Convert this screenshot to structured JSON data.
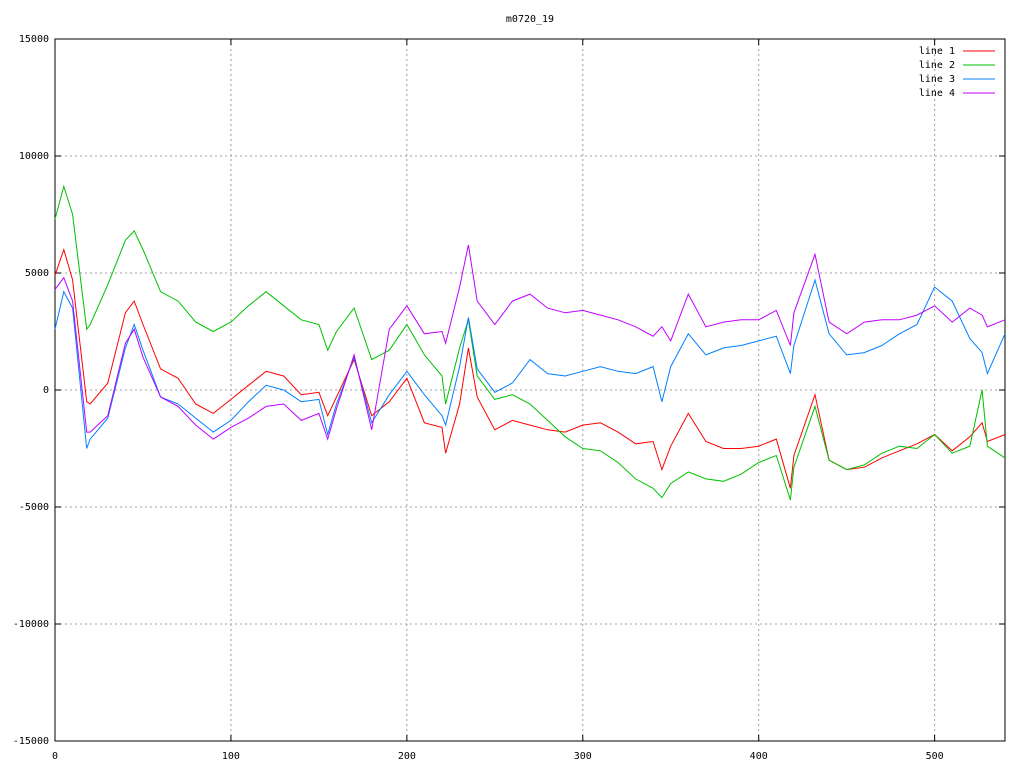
{
  "chart_data": {
    "type": "line",
    "title": "m0720_19",
    "x": [
      0,
      5,
      10,
      18,
      20,
      30,
      40,
      45,
      50,
      60,
      70,
      80,
      90,
      100,
      110,
      120,
      130,
      140,
      150,
      155,
      160,
      170,
      180,
      190,
      200,
      210,
      220,
      222,
      230,
      235,
      240,
      250,
      260,
      270,
      280,
      290,
      300,
      310,
      320,
      330,
      340,
      345,
      350,
      360,
      370,
      380,
      390,
      400,
      410,
      418,
      420,
      432,
      440,
      450,
      460,
      470,
      480,
      490,
      500,
      510,
      520,
      527,
      530,
      540
    ],
    "series": [
      {
        "name": "line 1",
        "color": "#ff0000",
        "values": [
          4900,
          6000,
          4700,
          -500,
          -600,
          300,
          3300,
          3800,
          2800,
          900,
          500,
          -600,
          -1000,
          -400,
          200,
          800,
          600,
          -200,
          -100,
          -1100,
          -300,
          1300,
          -1100,
          -500,
          500,
          -1400,
          -1600,
          -2700,
          -600,
          1800,
          -300,
          -1700,
          -1300,
          -1500,
          -1700,
          -1800,
          -1500,
          -1400,
          -1800,
          -2300,
          -2200,
          -3400,
          -2400,
          -1000,
          -2200,
          -2500,
          -2500,
          -2400,
          -2100,
          -4200,
          -2800,
          -200,
          -3000,
          -3400,
          -3300,
          -2900,
          -2600,
          -2300,
          -1900,
          -2600,
          -2000,
          -1400,
          -2200,
          -1900
        ]
      },
      {
        "name": "line 2",
        "color": "#00c000",
        "values": [
          7300,
          8700,
          7500,
          2600,
          2800,
          4500,
          6400,
          6800,
          6000,
          4200,
          3800,
          2900,
          2500,
          2900,
          3600,
          4200,
          3600,
          3000,
          2800,
          1700,
          2500,
          3500,
          1300,
          1700,
          2800,
          1500,
          600,
          -600,
          1800,
          3000,
          600,
          -400,
          -200,
          -600,
          -1300,
          -2000,
          -2500,
          -2600,
          -3100,
          -3800,
          -4200,
          -4600,
          -4000,
          -3500,
          -3800,
          -3900,
          -3600,
          -3100,
          -2800,
          -4700,
          -3300,
          -700,
          -3000,
          -3400,
          -3200,
          -2700,
          -2400,
          -2500,
          -1900,
          -2700,
          -2400,
          0,
          -2400,
          -2900
        ]
      },
      {
        "name": "line 3",
        "color": "#0080ff",
        "values": [
          2600,
          4200,
          3500,
          -2500,
          -2100,
          -1200,
          1800,
          2800,
          1700,
          -300,
          -600,
          -1200,
          -1800,
          -1300,
          -500,
          200,
          0,
          -500,
          -400,
          -1900,
          -600,
          1400,
          -1400,
          -200,
          800,
          -200,
          -1100,
          -1500,
          1000,
          3100,
          900,
          -100,
          300,
          1300,
          700,
          600,
          800,
          1000,
          800,
          700,
          1000,
          -500,
          1000,
          2400,
          1500,
          1800,
          1900,
          2100,
          2300,
          700,
          1900,
          4700,
          2400,
          1500,
          1600,
          1900,
          2400,
          2800,
          4400,
          3800,
          2200,
          1600,
          700,
          2400
        ]
      },
      {
        "name": "line 4",
        "color": "#c000ff",
        "values": [
          4300,
          4800,
          3800,
          -1800,
          -1800,
          -1100,
          2000,
          2600,
          1400,
          -300,
          -700,
          -1500,
          -2100,
          -1600,
          -1200,
          -700,
          -600,
          -1300,
          -1000,
          -2100,
          -800,
          1500,
          -1700,
          2600,
          3600,
          2400,
          2500,
          2000,
          4400,
          6200,
          3800,
          2800,
          3800,
          4100,
          3500,
          3300,
          3400,
          3200,
          3000,
          2700,
          2300,
          2700,
          2100,
          4100,
          2700,
          2900,
          3000,
          3000,
          3400,
          1900,
          3300,
          5800,
          2900,
          2400,
          2900,
          3000,
          3000,
          3200,
          3600,
          2900,
          3500,
          3200,
          2700,
          3000
        ]
      }
    ],
    "xlim": [
      0,
      540
    ],
    "xticks": [
      0,
      100,
      200,
      300,
      400,
      500
    ],
    "ylim": [
      -15000,
      15000
    ],
    "yticks": [
      -15000,
      -10000,
      -5000,
      0,
      5000,
      10000,
      15000
    ],
    "grid": true,
    "legend": "top-right"
  }
}
